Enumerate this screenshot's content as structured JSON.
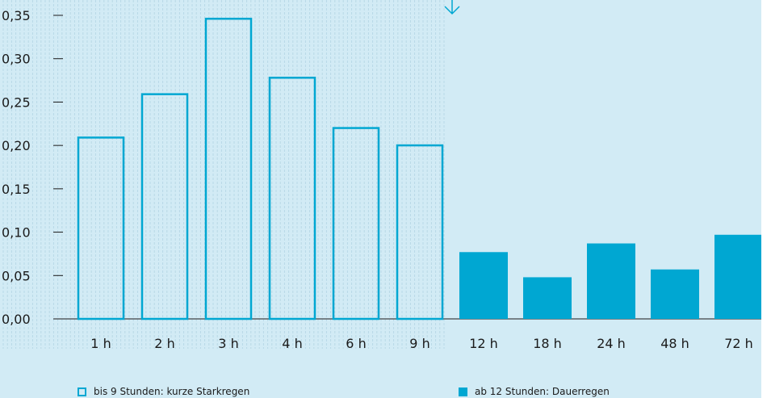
{
  "chart_data": {
    "type": "bar",
    "categories": [
      "1 h",
      "2 h",
      "3 h",
      "4 h",
      "6 h",
      "9 h",
      "12 h",
      "18 h",
      "24 h",
      "48 h",
      "72 h"
    ],
    "series": [
      {
        "name": "bis 9 Stunden: kurze Starkregen",
        "values": [
          0.21,
          0.26,
          0.347,
          0.279,
          0.221,
          0.201,
          null,
          null,
          null,
          null,
          null
        ]
      },
      {
        "name": "ab 12 Stunden: Dauerregen",
        "values": [
          null,
          null,
          null,
          null,
          null,
          null,
          0.077,
          0.048,
          0.087,
          0.057,
          0.097
        ]
      }
    ],
    "y_ticks": [
      "0,00",
      "0,05",
      "0,10",
      "0,15",
      "0,20",
      "0,25",
      "0,30",
      "0,35"
    ],
    "ylim": [
      0,
      0.35
    ],
    "grid": false,
    "legend_position": "bottom",
    "colors": {
      "background": "#d2ebf5",
      "accent": "#00a7d2",
      "text": "#1a1a1a",
      "hatch": "#b8d8e6"
    }
  }
}
